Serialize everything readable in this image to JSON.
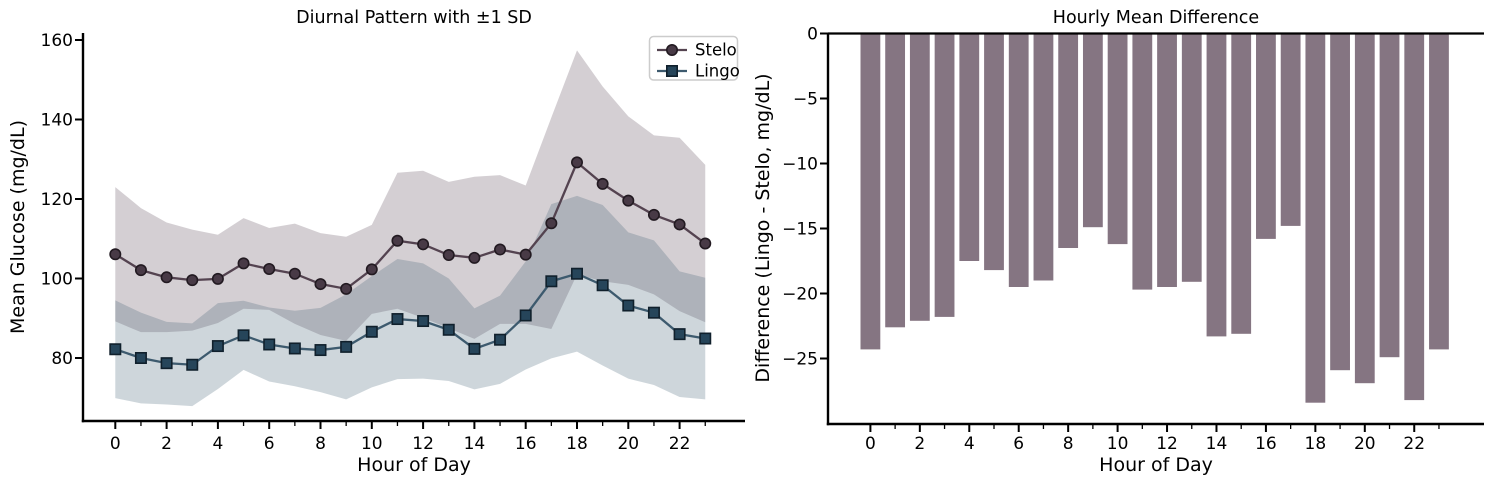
{
  "figure": {
    "background": "#ffffff",
    "text_color": "#000000",
    "spine_color": "#000000"
  },
  "chart_data": [
    {
      "type": "line",
      "title": "Diurnal Pattern with ±1 SD",
      "xlabel": "Hour of Day",
      "ylabel": "Mean Glucose (mg/dL)",
      "x": [
        0,
        1,
        2,
        3,
        4,
        5,
        6,
        7,
        8,
        9,
        10,
        11,
        12,
        13,
        14,
        15,
        16,
        17,
        18,
        19,
        20,
        21,
        22,
        23
      ],
      "xlim": [
        -1.3,
        24.6
      ],
      "ylim": [
        64,
        162
      ],
      "xticks": {
        "values": [
          0,
          2,
          4,
          6,
          8,
          10,
          12,
          14,
          16,
          18,
          20,
          22
        ],
        "labels": [
          "0",
          "2",
          "4",
          "6",
          "8",
          "10",
          "12",
          "14",
          "16",
          "18",
          "20",
          "22"
        ]
      },
      "yticks": {
        "values": [
          160,
          140,
          120,
          100,
          80
        ],
        "labels": [
          "160",
          "140",
          "120",
          "100",
          "80"
        ]
      },
      "legend": {
        "position": "upper right",
        "entries": [
          "Stelo",
          "Lingo"
        ]
      },
      "grid": false,
      "band_meaning": "mean ± 1 SD",
      "series": [
        {
          "name": "Stelo",
          "marker": "circle",
          "line_color": "#544350",
          "marker_fill": "#483a46",
          "marker_edge": "#221a21",
          "band_color": "rgba(84,65,78,0.25)",
          "values": [
            106.1,
            102.1,
            100.3,
            99.6,
            99.9,
            103.8,
            102.4,
            101.2,
            98.6,
            97.4,
            102.3,
            109.5,
            108.6,
            105.9,
            105.2,
            107.3,
            106.0,
            113.9,
            129.2,
            123.8,
            119.6,
            116.0,
            113.6,
            108.8
          ],
          "sd": [
            16.9,
            15.6,
            13.8,
            12.7,
            11.1,
            11.4,
            10.3,
            12.6,
            12.8,
            13.1,
            11.2,
            17.1,
            18.5,
            18.4,
            20.4,
            18.7,
            17.4,
            26.6,
            28.2,
            24.5,
            21.2,
            20.0,
            21.8,
            19.8
          ]
        },
        {
          "name": "Lingo",
          "marker": "square",
          "line_color": "#3d5a6e",
          "marker_fill": "#26455a",
          "marker_edge": "#10202c",
          "band_color": "rgba(61,90,110,0.25)",
          "values": [
            82.2,
            80.0,
            78.7,
            78.3,
            83.0,
            85.7,
            83.4,
            82.4,
            82.0,
            82.8,
            86.6,
            89.8,
            89.3,
            87.1,
            82.3,
            84.6,
            90.7,
            99.3,
            101.2,
            98.3,
            93.2,
            91.4,
            86.0,
            84.9
          ],
          "sd": [
            12.3,
            11.4,
            10.4,
            10.4,
            10.8,
            8.7,
            9.3,
            9.5,
            10.6,
            13.2,
            14.0,
            15.1,
            14.5,
            12.9,
            10.2,
            11.1,
            13.6,
            19.4,
            19.6,
            20.2,
            18.4,
            18.2,
            15.8,
            15.3
          ]
        }
      ]
    },
    {
      "type": "bar",
      "title": "Hourly Mean Difference",
      "xlabel": "Hour of Day",
      "ylabel": "Difference (Lingo - Stelo, mg/dL)",
      "x": [
        0,
        1,
        2,
        3,
        4,
        5,
        6,
        7,
        8,
        9,
        10,
        11,
        12,
        13,
        14,
        15,
        16,
        17,
        18,
        19,
        20,
        21,
        22,
        23
      ],
      "xlim": [
        -1.7,
        24.8
      ],
      "ylim": [
        -30,
        0
      ],
      "xticks": {
        "values": [
          0,
          2,
          4,
          6,
          8,
          10,
          12,
          14,
          16,
          18,
          20,
          22
        ],
        "labels": [
          "0",
          "2",
          "4",
          "6",
          "8",
          "10",
          "12",
          "14",
          "16",
          "18",
          "20",
          "22"
        ]
      },
      "yticks": {
        "values": [
          0,
          -5,
          -10,
          -15,
          -20,
          -25
        ],
        "labels": [
          "0",
          "−5",
          "−10",
          "−15",
          "−20",
          "−25"
        ]
      },
      "grid": false,
      "bar_color": "#857582",
      "zero_line": true,
      "values": [
        -24.3,
        -22.6,
        -22.1,
        -21.8,
        -17.5,
        -18.2,
        -19.5,
        -19.0,
        -16.5,
        -14.9,
        -16.2,
        -19.7,
        -19.5,
        -19.1,
        -23.3,
        -23.1,
        -15.8,
        -14.8,
        -28.4,
        -25.9,
        -26.9,
        -24.9,
        -28.2,
        -24.3
      ]
    }
  ]
}
